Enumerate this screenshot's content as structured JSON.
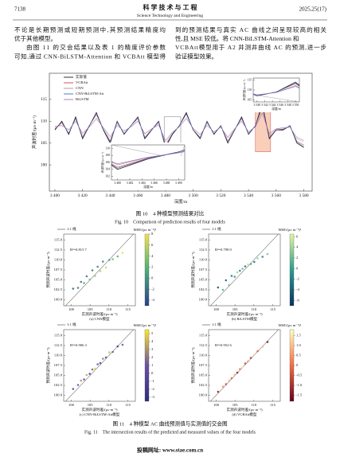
{
  "header": {
    "page_number": "7138",
    "journal_cn": "科 学 技 术 与 工 程",
    "journal_en": "Science Technology and Engineering",
    "issue": "2025,25(17)"
  },
  "body": {
    "left_lines": [
      "不论是长期预测或短期预测中,其预测结果精度均",
      "优于其他模型。",
      "由图 11 的交会结果以及表 1 的精度评价参数",
      "可知,通过 CNN-BiLSTM-Attention 和 VCBAtt 模型得"
    ],
    "right_lines": [
      "到的预测结果与真实 AC 曲线之间呈现较高的相关",
      "性,且 MSE 较低。将 CNN-BiLSTM-Attention 和",
      "VCBAtt模型用于 A2 井测井曲线 AC 的预测,进一步",
      "验证模型效果。"
    ]
  },
  "figure10": {
    "type": "line",
    "x_label": "深度/m",
    "y_label": "声波时差/(μs·m⁻¹)",
    "x": [
      3400,
      3405,
      3410,
      3415,
      3420,
      3425,
      3430,
      3435,
      3440,
      3445,
      3450,
      3455,
      3460,
      3465,
      3470,
      3475,
      3480,
      3485,
      3490,
      3495,
      3500,
      3505,
      3510,
      3515,
      3520,
      3525,
      3530,
      3535,
      3540,
      3545,
      3550,
      3555,
      3560,
      3565,
      3570,
      3575,
      3580
    ],
    "xlim": [
      3396,
      3586
    ],
    "xticks": [
      {
        "value": 3400,
        "label": "3 400"
      },
      {
        "value": 3420,
        "label": "3 420"
      },
      {
        "value": 3440,
        "label": "3 440"
      },
      {
        "value": 3460,
        "label": "3 460"
      },
      {
        "value": 3480,
        "label": "3 480"
      },
      {
        "value": 3500,
        "label": "3 500"
      },
      {
        "value": 3520,
        "label": "3 520"
      },
      {
        "value": 3540,
        "label": "3 540"
      },
      {
        "value": 3560,
        "label": "3 560"
      },
      {
        "value": 3580,
        "label": "3 580"
      }
    ],
    "ylim": [
      94,
      121
    ],
    "yticks": [
      100,
      105,
      110,
      115
    ],
    "series": [
      {
        "name": "实际值",
        "color": "#000000",
        "values": [
          108,
          110,
          107,
          111,
          106,
          109,
          112,
          108,
          105,
          110,
          107,
          109,
          111,
          106,
          108,
          110,
          104,
          107,
          109,
          112,
          108,
          106,
          110,
          107,
          109,
          105,
          108,
          111,
          107,
          109,
          114,
          106,
          108,
          108,
          109,
          105,
          104
        ]
      },
      {
        "name": "VCBAtt",
        "color": "#d62728",
        "values": [
          108.2,
          109.6,
          107.3,
          110.6,
          106.4,
          109.1,
          111.5,
          108.2,
          105.5,
          109.7,
          107.2,
          109.0,
          110.6,
          106.4,
          108.1,
          109.7,
          104.6,
          107.2,
          109.0,
          111.6,
          108.1,
          106.3,
          109.7,
          107.2,
          108.9,
          105.5,
          108.1,
          110.6,
          107.2,
          109.0,
          113.2,
          106.5,
          108.1,
          108.2,
          108.9,
          105.4,
          104.6
        ]
      },
      {
        "name": "CNN",
        "color": "#8c8c8c",
        "values": [
          108.6,
          109.1,
          107.9,
          110.1,
          107.0,
          108.8,
          110.8,
          108.5,
          106.2,
          109.2,
          107.6,
          108.8,
          110.1,
          107.0,
          108.2,
          109.3,
          105.3,
          107.4,
          108.8,
          110.9,
          108.3,
          106.8,
          109.2,
          107.5,
          108.7,
          106.1,
          108.2,
          110.1,
          107.5,
          108.8,
          112.2,
          107.0,
          108.2,
          108.4,
          108.7,
          106.0,
          105.3
        ]
      },
      {
        "name": "CNN-BiLSTM-Att",
        "color": "#1f5fb4",
        "values": [
          108.3,
          109.8,
          107.2,
          110.8,
          106.2,
          109.0,
          111.8,
          108.1,
          105.3,
          109.9,
          107.1,
          109.0,
          110.8,
          106.2,
          108.0,
          109.9,
          104.3,
          107.1,
          109.0,
          111.8,
          108.0,
          106.2,
          109.9,
          107.1,
          109.0,
          105.2,
          108.0,
          110.8,
          107.1,
          109.0,
          113.5,
          106.2,
          108.0,
          108.1,
          109.0,
          105.2,
          104.3
        ]
      },
      {
        "name": "BiLSTM",
        "color": "#9467bd",
        "values": [
          108.8,
          109.0,
          108.1,
          110.0,
          107.3,
          108.7,
          110.5,
          108.6,
          106.5,
          109.0,
          107.8,
          108.7,
          110.0,
          107.2,
          108.3,
          109.1,
          105.6,
          107.5,
          108.7,
          110.6,
          108.4,
          107.0,
          109.0,
          107.6,
          108.6,
          106.4,
          108.3,
          110.0,
          107.6,
          108.7,
          111.8,
          107.2,
          108.3,
          108.5,
          108.6,
          106.3,
          105.6
        ]
      }
    ],
    "insets": [
      {
        "xlim": [
          3539,
          3551
        ],
        "xticks": [
          {
            "value": 3540,
            "label": "3 540"
          },
          {
            "value": 3542,
            "label": "3 542"
          },
          {
            "value": 3544,
            "label": "3 544"
          },
          {
            "value": 3546,
            "label": "3 546"
          },
          {
            "value": 3548,
            "label": "3 548"
          },
          {
            "value": 3550,
            "label": "3 550"
          }
        ],
        "ylim": [
          104,
          116
        ],
        "yticks": [
          105,
          110,
          115
        ]
      },
      {
        "xlim": [
          3479,
          3491
        ],
        "xticks": [
          {
            "value": 3480,
            "label": "3 480"
          },
          {
            "value": 3482,
            "label": "3 482"
          },
          {
            "value": 3484,
            "label": "3 484"
          },
          {
            "value": 3486,
            "label": "3 486"
          },
          {
            "value": 3488,
            "label": "3 488"
          },
          {
            "value": 3490,
            "label": "3 490"
          }
        ],
        "ylim": [
          101,
          111
        ],
        "yticks": [
          102,
          104,
          106,
          108,
          110
        ]
      }
    ],
    "caption_cn": "图 10　4 种模型预测结果对比",
    "caption_en": "Fig. 10　Comparison of prediction results of four models"
  },
  "figure11": {
    "type": "scatter",
    "x_label": "实测声波时差/(μs·m⁻¹)",
    "y_label": "预测声波时差/(μs·m⁻¹)",
    "colorbar_title": "MSE/(μs·m⁻¹)²",
    "line_label": "1:1 线",
    "xlim": [
      98,
      117
    ],
    "xticks": [
      100,
      105,
      110,
      115
    ],
    "ylim": [
      98.5,
      116.5
    ],
    "yticks": [
      {
        "value": 100,
        "label": "100.0"
      },
      {
        "value": 102.5,
        "label": "102.5"
      },
      {
        "value": 105,
        "label": "105.0"
      },
      {
        "value": 107.5,
        "label": "107.5"
      },
      {
        "value": 110,
        "label": "110.0"
      },
      {
        "value": 112.5,
        "label": "112.5"
      },
      {
        "value": 115,
        "label": "115.0"
      }
    ],
    "x": [
      100.5,
      101.8,
      102.6,
      103.4,
      104.1,
      104.9,
      105.6,
      106.3,
      107.0,
      107.7,
      108.4,
      109.2,
      110.1,
      111.0,
      112.3,
      113.6
    ],
    "panels": [
      {
        "label": "(a) CNN模型",
        "r2": "R²=0.813 7",
        "values": [
          102.8,
          103.0,
          104.5,
          104.2,
          105.9,
          105.1,
          107.4,
          106.0,
          108.3,
          107.2,
          109.6,
          108.1,
          110.0,
          110.2,
          110.9,
          111.8
        ],
        "color_values": [
          -3.2,
          -1.8,
          -2.5,
          0.9,
          -2.1,
          3.3,
          -1.9,
          4.4,
          -1.6,
          5.6,
          -1.3,
          6.2,
          0.1,
          2.9,
          1.6,
          7.4
        ],
        "clim": [
          -5,
          8
        ],
        "cticks": [
          -4,
          -2,
          0,
          2,
          4,
          6,
          8
        ],
        "colors": [
          "#2c3e8c",
          "#48b07a",
          "#f2e34c"
        ]
      },
      {
        "label": "(b) BiLSTM模型",
        "r2": "R²=0.798 0",
        "values": [
          103.1,
          102.5,
          104.9,
          103.7,
          106.0,
          105.8,
          106.9,
          107.3,
          107.8,
          108.4,
          108.9,
          109.0,
          109.5,
          110.4,
          110.8,
          111.5
        ],
        "color_values": [
          -5.1,
          0.8,
          -4.2,
          2.3,
          -3.0,
          -1.1,
          4.0,
          -2.2,
          1.7,
          -3.5,
          5.2,
          0.4,
          -2.8,
          3.6,
          -1.9,
          2.4
        ],
        "clim": [
          -7,
          6.5
        ],
        "cticks": [
          -6,
          -4,
          -2,
          0,
          2,
          4,
          6
        ],
        "colors": [
          "#0b2f63",
          "#2a9d8f",
          "#e6f59d"
        ]
      },
      {
        "label": "(c) CNN-BiLSTM-Att模型",
        "r2": "R²=0.906 3",
        "values": [
          101.6,
          102.6,
          103.7,
          104.0,
          105.1,
          105.4,
          106.5,
          106.7,
          107.8,
          108.1,
          109.2,
          109.5,
          110.8,
          110.9,
          112.3,
          112.7
        ],
        "color_values": [
          -1.2,
          0.4,
          2.8,
          -0.6,
          3.5,
          -2.1,
          1.2,
          4.6,
          0.3,
          -1.8,
          2.2,
          -0.9,
          3.9,
          1.1,
          -2.6,
          0.7
        ],
        "clim": [
          -3.5,
          5.5
        ],
        "cticks": [
          -3,
          -2,
          -1,
          0,
          1,
          2,
          3,
          4,
          5
        ],
        "colors": [
          "#2b2d7e",
          "#6a51a3",
          "#fde725"
        ]
      },
      {
        "label": "(d) VCBAtt模型",
        "r2": "R²=0.952 6",
        "values": [
          100.9,
          102.2,
          102.8,
          103.8,
          104.3,
          105.2,
          105.7,
          106.6,
          107.1,
          108.0,
          108.5,
          109.4,
          110.2,
          111.1,
          112.2,
          113.4
        ],
        "color_values": [
          -1.2,
          0.4,
          -0.6,
          1.1,
          -0.3,
          0.8,
          -1.4,
          0.2,
          1.5,
          -0.7,
          0.5,
          -1.0,
          1.3,
          -0.2,
          0.9,
          -1.6
        ],
        "clim": [
          -1.8,
          1.8
        ],
        "cticks": [
          -1.5,
          {
            "value": -1,
            "label": "-1.0"
          },
          -0.5,
          0,
          0.5,
          {
            "value": 1,
            "label": "1.0"
          },
          1.5
        ],
        "colors": [
          "#67001f",
          "#f46d43",
          "#ffffbf"
        ]
      }
    ],
    "caption_cn": "图 11　4 种模型 AC 曲线预测值与实测值的交会图",
    "caption_en": "Fig. 11　The intersection results of the predicted and measured values of the four models"
  },
  "footer": {
    "url": "投稿网址: www.stae.com.cn"
  }
}
